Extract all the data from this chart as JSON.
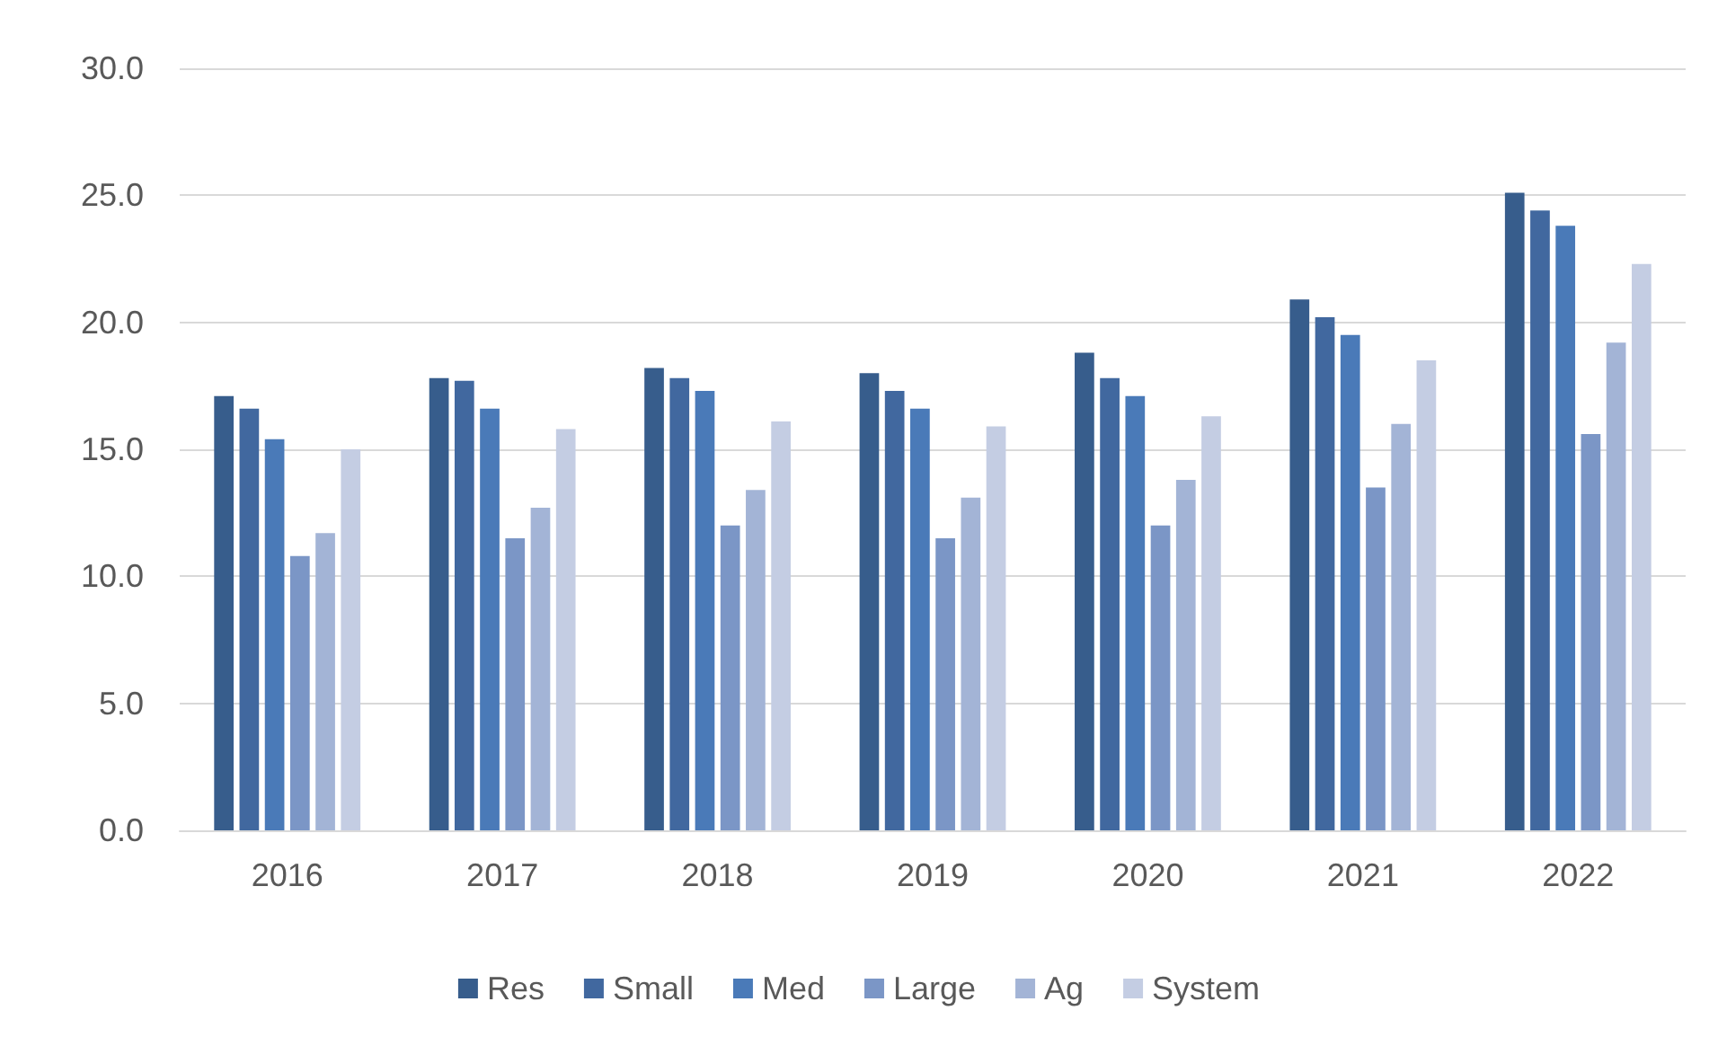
{
  "chart_data": {
    "type": "bar",
    "categories": [
      "2016",
      "2017",
      "2018",
      "2019",
      "2020",
      "2021",
      "2022"
    ],
    "series": [
      {
        "name": "Res",
        "color": "#375d8c",
        "values": [
          17.1,
          17.8,
          18.2,
          18.0,
          18.8,
          20.9,
          25.1
        ]
      },
      {
        "name": "Small",
        "color": "#41689f",
        "values": [
          16.6,
          17.7,
          17.8,
          17.3,
          17.8,
          20.2,
          24.4
        ]
      },
      {
        "name": "Med",
        "color": "#4a7ab8",
        "values": [
          15.4,
          16.6,
          17.3,
          16.6,
          17.1,
          19.5,
          23.8
        ]
      },
      {
        "name": "Large",
        "color": "#7b96c6",
        "values": [
          10.8,
          11.5,
          12.0,
          11.5,
          12.0,
          13.5,
          15.6
        ]
      },
      {
        "name": "Ag",
        "color": "#a3b4d6",
        "values": [
          11.7,
          12.7,
          13.4,
          13.1,
          13.8,
          16.0,
          19.2
        ]
      },
      {
        "name": "System",
        "color": "#c4cde3",
        "values": [
          15.0,
          15.8,
          16.1,
          15.9,
          16.3,
          18.5,
          22.3
        ]
      }
    ],
    "ylim": [
      0,
      30
    ],
    "yticks": [
      {
        "value": 0,
        "label": "0.0"
      },
      {
        "value": 5,
        "label": "5.0"
      },
      {
        "value": 10,
        "label": "10.0"
      },
      {
        "value": 15,
        "label": "15.0"
      },
      {
        "value": 20,
        "label": "20.0"
      },
      {
        "value": 25,
        "label": "25.0"
      },
      {
        "value": 30,
        "label": "30.0"
      }
    ],
    "grid": "y",
    "legend": "bottom"
  }
}
